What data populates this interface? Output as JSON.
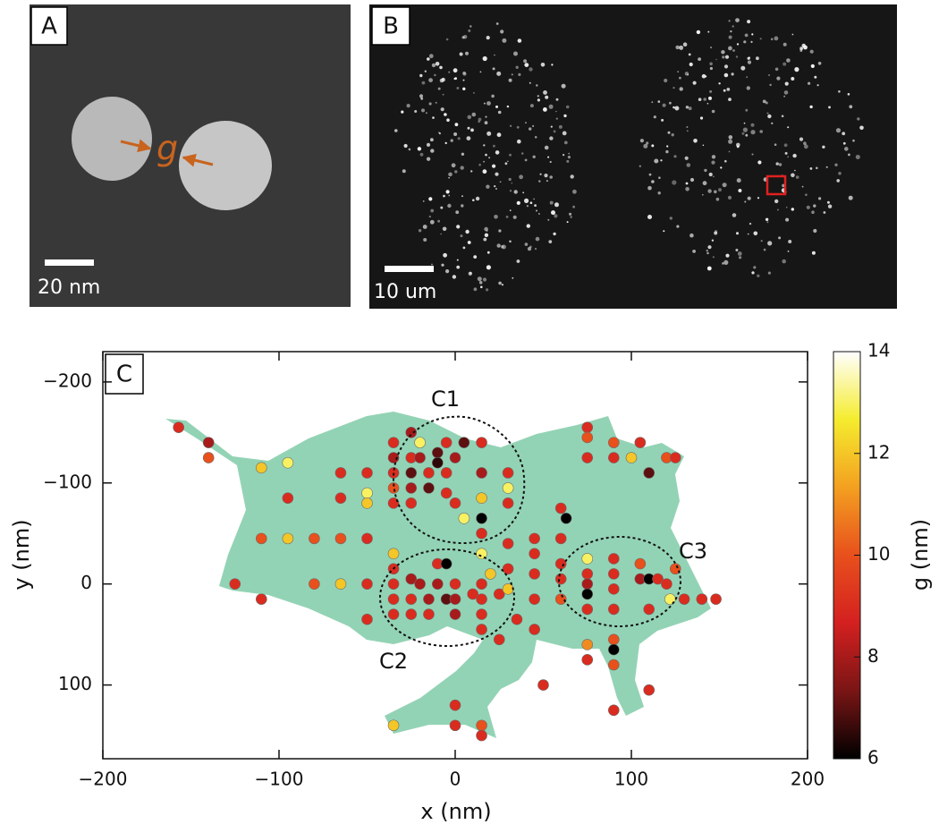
{
  "panels": {
    "A": {
      "label": "A",
      "scale_bar": "20 nm",
      "annotation": "g"
    },
    "B": {
      "label": "B",
      "scale_bar": "10 um"
    }
  },
  "chart_data": {
    "type": "scatter",
    "label": "C",
    "xlabel": "x (nm)",
    "ylabel": "y (nm)",
    "colorbar_label": "g (nm)",
    "annotations": [
      "C1",
      "C2",
      "C3"
    ],
    "xlim": [
      -200,
      200
    ],
    "xticks": [
      {
        "value": -200,
        "label": "−200"
      },
      {
        "value": -100,
        "label": "−100"
      },
      0,
      100,
      200
    ],
    "ylim": [
      173,
      -230
    ],
    "yticks": [
      {
        "value": -200,
        "label": "−200"
      },
      {
        "value": -100,
        "label": "−100"
      },
      0,
      100
    ],
    "clim": [
      6,
      14
    ],
    "cticks": [
      6,
      8,
      10,
      12,
      14
    ],
    "colormap": [
      "#000000",
      "#7a1515",
      "#d42020",
      "#e8501c",
      "#f3a020",
      "#f5ec2e",
      "#ffffff"
    ],
    "x": [
      -157,
      -140,
      -140,
      -110,
      -110,
      -110,
      -125,
      -95,
      -95,
      -95,
      -80,
      -80,
      -65,
      -65,
      -65,
      -65,
      -50,
      -50,
      -50,
      -50,
      -50,
      -50,
      -35,
      -35,
      -35,
      -35,
      -35,
      -25,
      -25,
      -25,
      -25,
      -25,
      -20,
      -20,
      -15,
      -15,
      -10,
      -10,
      -5,
      -5,
      -5,
      0,
      0,
      5,
      5,
      15,
      15,
      15,
      15,
      15,
      30,
      30,
      30,
      -35,
      -35,
      -35,
      -35,
      -35,
      -25,
      -25,
      -25,
      -20,
      -15,
      -15,
      -10,
      -10,
      -5,
      -5,
      0,
      0,
      0,
      10,
      15,
      15,
      15,
      15,
      15,
      20,
      25,
      30,
      30,
      35,
      45,
      45,
      45,
      45,
      30,
      60,
      60,
      60,
      60,
      60,
      63,
      45,
      25,
      75,
      75,
      75,
      75,
      75,
      90,
      90,
      90,
      90,
      105,
      105,
      110,
      115,
      120,
      122,
      130,
      140,
      148,
      125,
      110,
      75,
      75,
      75,
      90,
      90,
      100,
      105,
      110,
      120,
      125,
      -35,
      0,
      0,
      15,
      15,
      50,
      75,
      75,
      90,
      90,
      90,
      110,
      90
    ],
    "y": [
      -155,
      -140,
      -125,
      -115,
      -45,
      15,
      0,
      -120,
      -85,
      -45,
      -45,
      0,
      -110,
      -85,
      -45,
      0,
      -110,
      -90,
      -80,
      -45,
      0,
      35,
      -140,
      -125,
      -110,
      -95,
      -80,
      -150,
      -125,
      -110,
      -95,
      -80,
      -140,
      -125,
      -110,
      -95,
      -130,
      -120,
      -140,
      -110,
      -90,
      -125,
      -80,
      -140,
      -65,
      -140,
      -110,
      -85,
      -65,
      -50,
      -110,
      -95,
      -80,
      -30,
      -15,
      0,
      15,
      30,
      -5,
      15,
      30,
      0,
      15,
      30,
      -20,
      0,
      15,
      -20,
      0,
      15,
      30,
      10,
      -30,
      0,
      15,
      30,
      45,
      -10,
      10,
      -15,
      5,
      35,
      -45,
      -30,
      -10,
      15,
      -40,
      -75,
      -45,
      -20,
      -5,
      15,
      -65,
      45,
      55,
      -25,
      -10,
      0,
      10,
      25,
      -25,
      -10,
      5,
      25,
      -20,
      -5,
      -5,
      -5,
      0,
      15,
      15,
      15,
      15,
      -15,
      25,
      -155,
      -145,
      -125,
      -140,
      -125,
      -125,
      -140,
      -110,
      -125,
      -125,
      140,
      120,
      140,
      140,
      150,
      100,
      60,
      75,
      55,
      65,
      80,
      105,
      125
    ],
    "c": [
      9,
      8,
      10,
      12,
      10,
      9,
      9,
      13,
      9,
      12,
      10,
      10,
      9,
      9,
      10,
      12,
      9,
      13,
      12,
      9,
      9,
      9,
      9,
      8,
      9,
      10,
      9,
      8,
      9,
      7,
      8,
      9,
      13,
      8,
      9,
      7,
      7,
      6.5,
      9,
      9,
      9,
      8,
      9,
      7,
      13,
      9,
      8,
      12,
      6,
      9,
      9,
      13,
      9,
      12,
      9,
      9,
      9,
      9,
      8,
      9,
      9,
      8,
      8,
      9,
      9,
      8,
      7,
      6,
      9,
      8,
      8,
      9,
      13,
      9,
      9,
      9,
      9,
      12,
      9,
      9,
      12,
      9,
      9,
      9,
      9,
      9,
      9,
      9,
      9,
      9,
      9,
      10,
      6,
      9,
      9,
      13,
      9,
      8,
      6,
      9,
      9,
      9,
      9,
      9,
      10,
      8,
      6,
      9,
      9,
      13,
      9,
      9,
      9,
      10,
      9,
      9,
      10,
      9,
      10,
      9,
      12,
      9,
      7,
      10,
      9,
      12,
      9,
      9,
      10,
      9,
      9,
      11,
      9,
      10,
      6,
      10,
      9,
      9
    ]
  }
}
